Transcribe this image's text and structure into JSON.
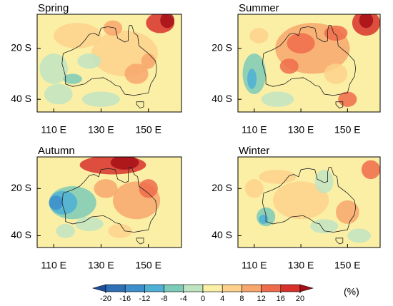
{
  "panels": [
    {
      "title": "Spring"
    },
    {
      "title": "Summer"
    },
    {
      "title": "Autumn"
    },
    {
      "title": "Winter"
    }
  ],
  "y_tick_labels": [
    "20 S",
    "40 S"
  ],
  "x_tick_labels": [
    "110 E",
    "130 E",
    "150 E"
  ],
  "colorbar": {
    "ticks": [
      -20,
      -16,
      -12,
      -8,
      -4,
      0,
      4,
      8,
      12,
      16,
      20
    ],
    "colors": [
      "#1d4f9e",
      "#2f6fb6",
      "#3d8fcb",
      "#4fb0d6",
      "#7ccbb8",
      "#bfe4c2",
      "#fbefa6",
      "#fdd18b",
      "#f8a76c",
      "#ee6c4b",
      "#d8312c",
      "#a60f18"
    ],
    "unit_label": "(%)"
  }
}
